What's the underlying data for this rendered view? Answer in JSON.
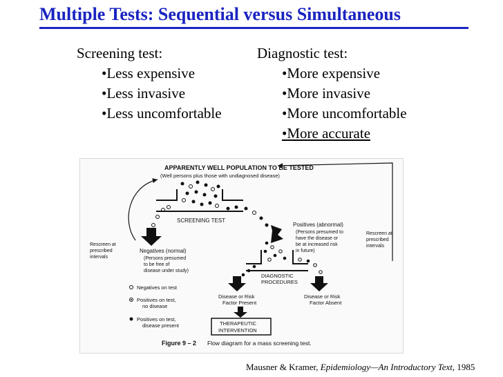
{
  "slide": {
    "title": "Multiple Tests: Sequential versus Simultaneous"
  },
  "screening": {
    "heading": "Screening test:",
    "items": [
      "•Less expensive",
      "•Less invasive",
      "•Less uncomfortable"
    ]
  },
  "diagnostic": {
    "heading": "Diagnostic test:",
    "items": [
      "•More expensive",
      "•More invasive",
      "•More uncomfortable"
    ],
    "underlined_item": "•More accurate"
  },
  "figure": {
    "population_title": "APPARENTLY WELL POPULATION TO BE TESTED",
    "population_subtitle": "(Well persons plus those with undiagnosed disease)",
    "screening_label": "SCREENING TEST",
    "positives_heading": "Positives (abnormal)",
    "positives_lines": [
      "(Persons presumed to",
      "have the disease or",
      "be at increased risk",
      "in future)"
    ],
    "negatives_heading": "Negatives (normal)",
    "negatives_lines": [
      "(Persons presumed",
      "to be free of",
      "disease under study)"
    ],
    "rescreen_left": [
      "Rescreen at",
      "prescribed",
      "intervals"
    ],
    "rescreen_right": [
      "Rescreen at",
      "prescribed",
      "intervals"
    ],
    "diagnostic_label": [
      "DIAGNOSTIC",
      "PROCEDURES"
    ],
    "present_label": [
      "Disease or Risk",
      "Factor Present"
    ],
    "absent_label": [
      "Disease or Risk",
      "Factor Absent"
    ],
    "therapeutic_label": [
      "THERAPEUTIC",
      "INTERVENTION"
    ],
    "legend": {
      "negatives": "Negatives on test",
      "positives_no_disease": [
        "Positives on test,",
        "no disease"
      ],
      "positives_disease": [
        "Positives on test,",
        "disease present"
      ]
    },
    "caption_label": "Figure 9 – 2",
    "caption_text": "Flow diagram for a mass screening test."
  },
  "citation": {
    "authors": "Mausner & Kramer,",
    "work": "Epidemiology—An Introductory Text",
    "year": ", 1985"
  }
}
